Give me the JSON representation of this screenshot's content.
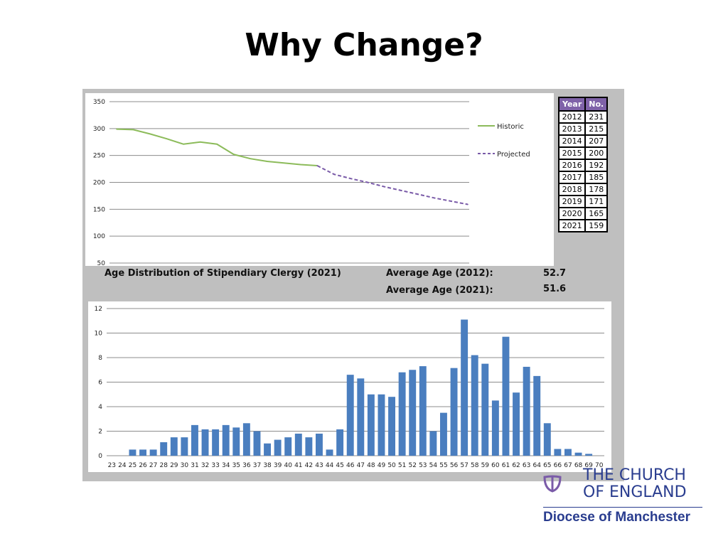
{
  "slide": {
    "title": "Why Change?",
    "colors": {
      "historic": "#8cbb5a",
      "projected": "#7a5ba8",
      "bar": "#4a7ebf",
      "panel": "#bfbfbf",
      "brand": "#2a3d8f"
    }
  },
  "table": {
    "headers": [
      "Year",
      "No."
    ],
    "rows": [
      [
        "2012",
        "231"
      ],
      [
        "2013",
        "215"
      ],
      [
        "2014",
        "207"
      ],
      [
        "2015",
        "200"
      ],
      [
        "2016",
        "192"
      ],
      [
        "2017",
        "185"
      ],
      [
        "2018",
        "178"
      ],
      [
        "2019",
        "171"
      ],
      [
        "2020",
        "165"
      ],
      [
        "2021",
        "159"
      ]
    ]
  },
  "labels": {
    "distribution_title": "Age Distribution of Stipendiary Clergy (2021)",
    "avg_2012_label": "Average Age (2012):",
    "avg_2012_value": "52.7",
    "avg_2021_label": "Average Age (2021):",
    "avg_2021_value": "51.6"
  },
  "brand": {
    "name_line1": "THE CHURCH",
    "name_line2": "OF ENGLAND",
    "diocese": "Diocese of Manchester"
  },
  "chart_data": [
    {
      "type": "line",
      "ylim": [
        50,
        350
      ],
      "yticks": [
        50,
        100,
        150,
        200,
        250,
        300,
        350
      ],
      "xcount": 22,
      "grid": true,
      "legend": "right",
      "series": [
        {
          "name": "Historic",
          "style": "solid",
          "x": [
            0,
            1,
            2,
            3,
            4,
            5,
            6,
            7,
            8,
            9,
            10,
            11,
            12
          ],
          "values": [
            299,
            298,
            290,
            281,
            271,
            275,
            271,
            252,
            244,
            239,
            236,
            233,
            231
          ]
        },
        {
          "name": "Projected",
          "style": "dashed",
          "x": [
            12,
            13,
            14,
            15,
            16,
            17,
            18,
            19,
            20,
            21
          ],
          "values": [
            231,
            215,
            207,
            200,
            192,
            185,
            178,
            171,
            165,
            159
          ]
        }
      ]
    },
    {
      "type": "bar",
      "ylim": [
        0,
        12
      ],
      "yticks": [
        0,
        2,
        4,
        6,
        8,
        10,
        12
      ],
      "grid": true,
      "categories": [
        "23",
        "24",
        "25",
        "26",
        "27",
        "28",
        "29",
        "30",
        "31",
        "32",
        "33",
        "34",
        "35",
        "36",
        "37",
        "38",
        "39",
        "40",
        "41",
        "42",
        "43",
        "44",
        "45",
        "46",
        "47",
        "48",
        "49",
        "50",
        "51",
        "52",
        "53",
        "54",
        "55",
        "56",
        "57",
        "58",
        "59",
        "60",
        "61",
        "62",
        "63",
        "64",
        "65",
        "66",
        "67",
        "68",
        "69",
        "70"
      ],
      "values": [
        0,
        0,
        0.5,
        0.5,
        0.5,
        1.1,
        1.5,
        1.5,
        2.5,
        2.15,
        2.15,
        2.5,
        2.3,
        2.65,
        2.0,
        1.0,
        1.3,
        1.5,
        1.8,
        1.5,
        1.8,
        0.5,
        2.15,
        6.6,
        6.3,
        5.0,
        5.0,
        4.8,
        6.8,
        7.0,
        7.3,
        2.0,
        3.5,
        7.15,
        11.1,
        8.2,
        7.5,
        4.5,
        9.7,
        5.15,
        7.25,
        6.5,
        2.65,
        0.55,
        0.55,
        0.25,
        0.15,
        0
      ]
    }
  ]
}
